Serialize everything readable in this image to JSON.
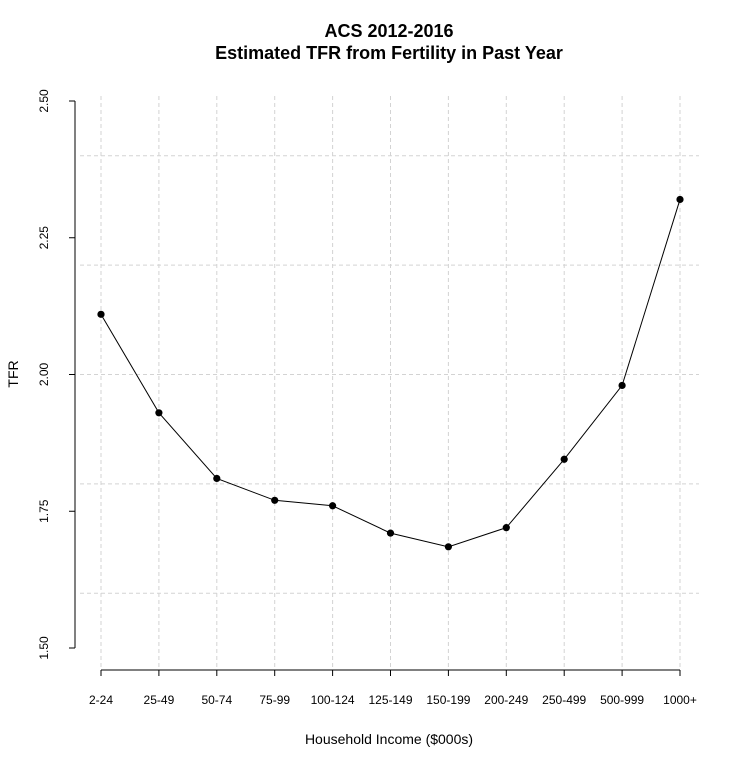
{
  "chart_data": {
    "type": "line",
    "title": "ACS 2012-2016",
    "subtitle": "Estimated TFR from Fertility in Past Year",
    "xlabel": "Household Income ($000s)",
    "ylabel": "TFR",
    "categories": [
      "2-24",
      "25-49",
      "50-74",
      "75-99",
      "100-124",
      "125-149",
      "150-199",
      "200-249",
      "250-499",
      "500-999",
      "1000+"
    ],
    "series": [
      {
        "values": [
          2.11,
          1.93,
          1.81,
          1.77,
          1.76,
          1.71,
          1.685,
          1.72,
          1.845,
          1.98,
          2.32
        ]
      }
    ],
    "ylim": [
      1.5,
      2.5
    ],
    "yticks": [
      "1.50",
      "1.75",
      "2.00",
      "2.25",
      "2.50"
    ],
    "ygrid": [
      1.6,
      1.8,
      2.0,
      2.2,
      2.4
    ],
    "grid": true,
    "colors": {
      "line": "#000000",
      "grid": "#d3d3d3",
      "axis": "#000000"
    }
  }
}
